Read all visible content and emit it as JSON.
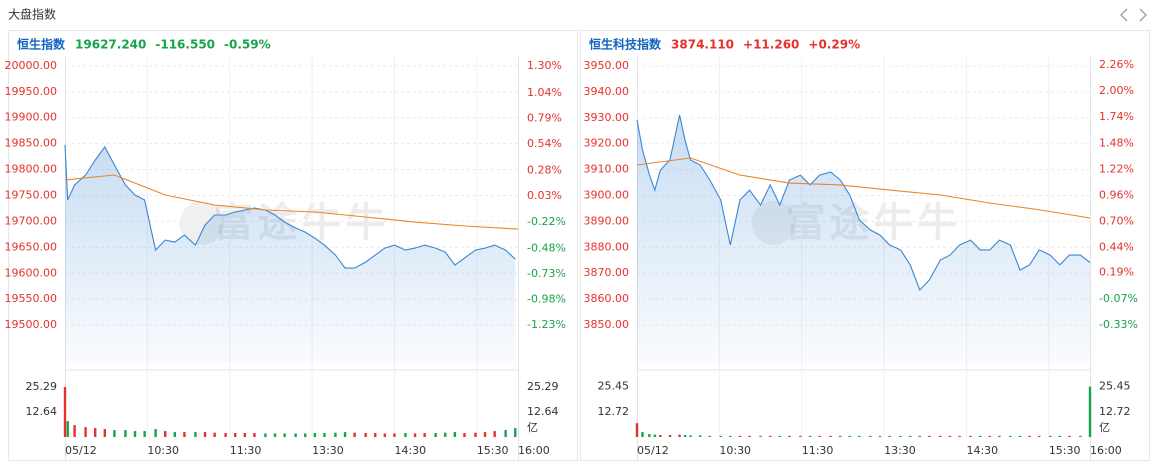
{
  "header": {
    "title": "大盘指数"
  },
  "chart_data": [
    {
      "type": "line",
      "name": "恒生指数",
      "price": "19627.240",
      "change": "-116.550",
      "pct": "-0.59%",
      "color": "#17a34a",
      "watermark": "富途牛牛",
      "up_color": "#e5322d",
      "down_color": "#17a34a",
      "grid": true,
      "xlim": [
        0,
        330
      ],
      "xticks": [
        {
          "value": 0,
          "label": "05/12"
        },
        {
          "value": 60,
          "label": "10:30"
        },
        {
          "value": 120,
          "label": "11:30"
        },
        {
          "value": 180,
          "label": "13:30"
        },
        {
          "value": 240,
          "label": "14:30"
        },
        {
          "value": 300,
          "label": "15:30"
        },
        {
          "value": 330,
          "label": "16:00"
        }
      ],
      "ylim": [
        19429,
        20017
      ],
      "yticks": [
        {
          "value": 20000,
          "label": "20000.00"
        },
        {
          "value": 19950,
          "label": "19950.00"
        },
        {
          "value": 19900,
          "label": "19900.00"
        },
        {
          "value": 19850,
          "label": "19850.00"
        },
        {
          "value": 19800,
          "label": "19800.00"
        },
        {
          "value": 19750,
          "label": "19750.00"
        },
        {
          "value": 19700,
          "label": "19700.00"
        },
        {
          "value": 19650,
          "label": "19650.00"
        },
        {
          "value": 19600,
          "label": "19600.00"
        },
        {
          "value": 19550,
          "label": "19550.00"
        },
        {
          "value": 19500,
          "label": "19500.00"
        }
      ],
      "y2lim": [
        -1.59,
        1.39
      ],
      "y2ticks": [
        {
          "value": 1.3,
          "label": "1.30%"
        },
        {
          "value": 1.04,
          "label": "1.04%"
        },
        {
          "value": 0.79,
          "label": "0.79%"
        },
        {
          "value": 0.54,
          "label": "0.54%"
        },
        {
          "value": 0.28,
          "label": "0.28%"
        },
        {
          "value": 0.03,
          "label": "0.03%"
        },
        {
          "value": -0.22,
          "label": "-0.22%"
        },
        {
          "value": -0.48,
          "label": "-0.48%"
        },
        {
          "value": -0.73,
          "label": "-0.73%"
        },
        {
          "value": -0.98,
          "label": "-0.98%"
        },
        {
          "value": -1.23,
          "label": "-1.23%"
        }
      ],
      "series": [
        {
          "color": "#3a86d4",
          "x": [
            0,
            2,
            7,
            15,
            22,
            29,
            36,
            44,
            51,
            58,
            66,
            73,
            80,
            87,
            95,
            102,
            109,
            117,
            124,
            131,
            138,
            146,
            153,
            160,
            168,
            175,
            182,
            189,
            197,
            204,
            211,
            219,
            226,
            233,
            240,
            248,
            255,
            262,
            270,
            277,
            284,
            291,
            299,
            306,
            313,
            321,
            328
          ],
          "values": [
            19847.5,
            19741.3,
            19770.3,
            19789.6,
            19818.5,
            19843.6,
            19808.9,
            19770.3,
            19751.0,
            19741.3,
            19644.8,
            19664.1,
            19660.2,
            19673.7,
            19654.4,
            19693.0,
            19712.4,
            19712.4,
            19718.1,
            19722.0,
            19725.9,
            19722.0,
            19712.4,
            19698.8,
            19687.3,
            19679.5,
            19667.9,
            19654.4,
            19635.1,
            19610.0,
            19610.0,
            19621.6,
            19635.1,
            19648.6,
            19654.4,
            19644.8,
            19648.6,
            19654.4,
            19648.6,
            19640.9,
            19615.8,
            19629.3,
            19644.8,
            19648.6,
            19654.4,
            19644.8,
            19627.2
          ]
        },
        {
          "color": "#e8862a",
          "x": [
            0,
            36,
            73,
            109,
            146,
            182,
            219,
            255,
            291,
            330
          ],
          "values": [
            19780,
            19789.6,
            19751,
            19731.7,
            19722,
            19718.1,
            19708.5,
            19698.8,
            19691.1,
            19685.3
          ]
        }
      ],
      "volume": {
        "unit": "亿",
        "ylim": [
          0,
          29.84
        ],
        "yticks": [
          25.29,
          12.64
        ],
        "values": [
          25.29,
          8,
          6,
          5,
          4.5,
          4,
          3.5,
          3.5,
          3,
          3,
          4,
          3,
          2.5,
          2.5,
          2.5,
          2.5,
          2.2,
          2,
          2,
          2,
          2,
          1.8,
          1.8,
          1.8,
          1.8,
          1.8,
          2,
          2,
          2.2,
          2.5,
          2.2,
          2,
          2,
          1.8,
          1.8,
          2,
          1.8,
          2,
          2,
          2.2,
          2.5,
          2,
          2.2,
          2.5,
          3,
          3.5,
          4.5
        ]
      }
    },
    {
      "type": "line",
      "name": "恒生科技指数",
      "price": "3874.110",
      "change": "+11.260",
      "pct": "+0.29%",
      "color": "#e5322d",
      "watermark": "富途牛牛",
      "up_color": "#e5322d",
      "down_color": "#17a34a",
      "grid": true,
      "xlim": [
        0,
        330
      ],
      "xticks": [
        {
          "value": 0,
          "label": "05/12"
        },
        {
          "value": 60,
          "label": "10:30"
        },
        {
          "value": 120,
          "label": "11:30"
        },
        {
          "value": 180,
          "label": "13:30"
        },
        {
          "value": 240,
          "label": "14:30"
        },
        {
          "value": 300,
          "label": "15:30"
        },
        {
          "value": 330,
          "label": "16:00"
        }
      ],
      "ylim": [
        3835.7,
        3953.5
      ],
      "yticks": [
        {
          "value": 3950,
          "label": "3950.00"
        },
        {
          "value": 3940,
          "label": "3940.00"
        },
        {
          "value": 3930,
          "label": "3930.00"
        },
        {
          "value": 3920,
          "label": "3920.00"
        },
        {
          "value": 3910,
          "label": "3910.00"
        },
        {
          "value": 3900,
          "label": "3900.00"
        },
        {
          "value": 3890,
          "label": "3890.00"
        },
        {
          "value": 3880,
          "label": "3880.00"
        },
        {
          "value": 3870,
          "label": "3870.00"
        },
        {
          "value": 3860,
          "label": "3860.00"
        },
        {
          "value": 3850,
          "label": "3850.00"
        }
      ],
      "y2lim": [
        -0.7,
        2.34
      ],
      "y2ticks": [
        {
          "value": 2.26,
          "label": "2.26%"
        },
        {
          "value": 2.0,
          "label": "2.00%"
        },
        {
          "value": 1.74,
          "label": "1.74%"
        },
        {
          "value": 1.48,
          "label": "1.48%"
        },
        {
          "value": 1.22,
          "label": "1.22%"
        },
        {
          "value": 0.96,
          "label": "0.96%"
        },
        {
          "value": 0.7,
          "label": "0.70%"
        },
        {
          "value": 0.44,
          "label": "0.44%"
        },
        {
          "value": 0.19,
          "label": "0.19%"
        },
        {
          "value": -0.07,
          "label": "-0.07%"
        },
        {
          "value": -0.33,
          "label": "-0.33%"
        }
      ],
      "series": [
        {
          "color": "#3a86d4",
          "x": [
            0,
            4,
            9,
            13,
            17,
            24,
            31,
            35,
            39,
            46,
            53,
            61,
            68,
            75,
            82,
            90,
            97,
            104,
            111,
            119,
            126,
            133,
            141,
            148,
            155,
            162,
            170,
            177,
            184,
            192,
            199,
            206,
            213,
            221,
            228,
            235,
            243,
            250,
            257,
            264,
            272,
            279,
            286,
            293,
            301,
            308,
            315,
            323,
            330
          ],
          "values": [
            3929.2,
            3917.6,
            3908.0,
            3902.1,
            3909.8,
            3913.7,
            3931.1,
            3921.4,
            3913.7,
            3911.8,
            3906.0,
            3898.3,
            3880.9,
            3898.3,
            3902.1,
            3896.3,
            3904.1,
            3896.3,
            3906.0,
            3907.9,
            3904.1,
            3907.9,
            3909.1,
            3906.0,
            3900.2,
            3890.5,
            3886.7,
            3884.7,
            3880.9,
            3879.0,
            3873.2,
            3863.5,
            3867.4,
            3875.1,
            3877.0,
            3880.9,
            3882.8,
            3879.0,
            3879.0,
            3882.8,
            3880.9,
            3871.2,
            3873.2,
            3879.0,
            3877.0,
            3873.2,
            3877.0,
            3877.0,
            3874.1
          ]
        },
        {
          "color": "#e8862a",
          "x": [
            0,
            39,
            75,
            111,
            148,
            184,
            221,
            257,
            294,
            330
          ],
          "values": [
            3911.8,
            3914.5,
            3907.9,
            3904.8,
            3904.1,
            3902.1,
            3900.2,
            3897.1,
            3894.4,
            3891.3
          ]
        }
      ],
      "volume": {
        "unit": "亿",
        "ylim": [
          0,
          29.84
        ],
        "yticks": [
          25.45,
          12.72
        ],
        "values": [
          7,
          2.5,
          1.5,
          1.2,
          1,
          1,
          1.2,
          1,
          0.8,
          0.8,
          0.6,
          0.6,
          0.6,
          0.6,
          0.6,
          0.6,
          0.6,
          0.6,
          0.6,
          0.6,
          0.6,
          0.6,
          0.6,
          0.6,
          0.6,
          0.6,
          0.6,
          0.6,
          0.6,
          0.6,
          0.6,
          0.6,
          0.6,
          0.6,
          0.6,
          0.6,
          0.6,
          0.6,
          0.6,
          0.6,
          0.6,
          0.6,
          0.6,
          0.6,
          0.6,
          0.6,
          0.6,
          0.6,
          25.45
        ]
      }
    }
  ]
}
